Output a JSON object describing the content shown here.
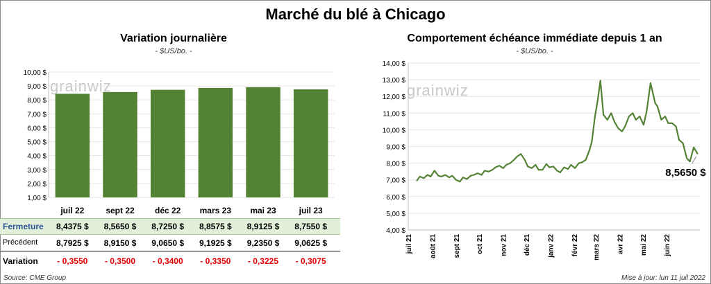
{
  "title": "Marché du blé à Chicago",
  "left_chart": {
    "title": "Variation  journalière",
    "unit": "- $US/bo. -",
    "watermark": "grainwiz"
  },
  "right_chart": {
    "title": "Comportement  échéance immédiate depuis 1 an",
    "unit": "- $US/bo. -",
    "watermark": "grainwiz",
    "last_label": "8,5650 $"
  },
  "table": {
    "row_labels": {
      "close": "Fermeture",
      "previous": "Précédent",
      "variation": "Variation"
    },
    "columns": [
      "juil 22",
      "sept 22",
      "déc 22",
      "mars 23",
      "mai 23",
      "juil 23"
    ],
    "close": [
      "8,4375  $",
      "8,5650  $",
      "8,7250  $",
      "8,8575  $",
      "8,9125  $",
      "8,7550  $"
    ],
    "previous": [
      "8,7925  $",
      "8,9150  $",
      "9,0650  $",
      "9,1925  $",
      "9,2350  $",
      "9,0625  $"
    ],
    "variation": [
      "- 0,3550",
      "- 0,3500",
      "- 0,3400",
      "- 0,3350",
      "- 0,3225",
      "- 0,3075"
    ]
  },
  "footer": {
    "source": "Source: CME Group",
    "updated": "Mise à jour: lun 11 juil 2022"
  },
  "chart_data": [
    {
      "type": "bar",
      "title": "Variation  journalière",
      "ylabel": "- $US/bo. -",
      "categories": [
        "juil 22",
        "sept 22",
        "déc 22",
        "mars 23",
        "mai 23",
        "juil 23"
      ],
      "values": [
        8.4375,
        8.565,
        8.725,
        8.8575,
        8.9125,
        8.755
      ],
      "ylim": [
        1,
        10
      ],
      "yticks": [
        "1,00 $",
        "2,00 $",
        "3,00 $",
        "4,00 $",
        "5,00 $",
        "6,00 $",
        "7,00 $",
        "8,00 $",
        "9,00 $",
        "10,00 $"
      ],
      "color": "#548235"
    },
    {
      "type": "line",
      "title": "Comportement  échéance immédiate depuis 1 an",
      "ylabel": "- $US/bo. -",
      "ylim": [
        4,
        14
      ],
      "yticks": [
        "4,00 $",
        "5,00 $",
        "6,00 $",
        "7,00 $",
        "8,00 $",
        "9,00 $",
        "10,00 $",
        "11,00 $",
        "12,00 $",
        "13,00 $",
        "14,00 $"
      ],
      "xticks": [
        "juil 21",
        "août 21",
        "sept 21",
        "oct 21",
        "nov 21",
        "déc 21",
        "janv 22",
        "févr 22",
        "mars 22",
        "avr 22",
        "mai 22",
        "juin 22"
      ],
      "color": "#548235",
      "x": [
        "2021-07-12",
        "2021-07-16",
        "2021-07-21",
        "2021-07-26",
        "2021-07-30",
        "2021-08-04",
        "2021-08-09",
        "2021-08-13",
        "2021-08-18",
        "2021-08-23",
        "2021-08-27",
        "2021-09-01",
        "2021-09-06",
        "2021-09-10",
        "2021-09-15",
        "2021-09-20",
        "2021-09-24",
        "2021-09-29",
        "2021-10-04",
        "2021-10-08",
        "2021-10-13",
        "2021-10-18",
        "2021-10-22",
        "2021-10-27",
        "2021-11-01",
        "2021-11-05",
        "2021-11-10",
        "2021-11-15",
        "2021-11-19",
        "2021-11-24",
        "2021-11-29",
        "2021-12-03",
        "2021-12-08",
        "2021-12-13",
        "2021-12-17",
        "2021-12-22",
        "2021-12-27",
        "2021-12-31",
        "2022-01-05",
        "2022-01-10",
        "2022-01-14",
        "2022-01-19",
        "2022-01-24",
        "2022-01-28",
        "2022-02-02",
        "2022-02-07",
        "2022-02-11",
        "2022-02-16",
        "2022-02-21",
        "2022-02-24",
        "2022-02-28",
        "2022-03-03",
        "2022-03-07",
        "2022-03-11",
        "2022-03-16",
        "2022-03-21",
        "2022-03-25",
        "2022-03-30",
        "2022-04-04",
        "2022-04-08",
        "2022-04-13",
        "2022-04-18",
        "2022-04-22",
        "2022-04-27",
        "2022-05-02",
        "2022-05-06",
        "2022-05-11",
        "2022-05-17",
        "2022-05-20",
        "2022-05-25",
        "2022-05-30",
        "2022-06-03",
        "2022-06-08",
        "2022-06-13",
        "2022-06-17",
        "2022-06-22",
        "2022-06-27",
        "2022-07-01",
        "2022-07-06",
        "2022-07-11"
      ],
      "y": [
        6.95,
        7.2,
        7.1,
        7.3,
        7.2,
        7.55,
        7.25,
        7.2,
        7.3,
        7.15,
        7.25,
        7.0,
        6.9,
        7.15,
        7.05,
        7.25,
        7.3,
        7.4,
        7.3,
        7.55,
        7.5,
        7.6,
        7.75,
        7.85,
        7.7,
        7.9,
        8.0,
        8.2,
        8.4,
        8.55,
        8.2,
        7.8,
        7.7,
        7.9,
        7.6,
        7.6,
        7.95,
        7.75,
        7.8,
        7.55,
        7.45,
        7.75,
        7.65,
        7.9,
        7.7,
        8.0,
        8.05,
        8.2,
        8.8,
        9.3,
        10.8,
        11.6,
        12.95,
        10.9,
        10.6,
        11.0,
        10.5,
        10.1,
        9.9,
        10.2,
        10.8,
        11.0,
        10.6,
        10.8,
        10.3,
        11.1,
        12.8,
        11.6,
        11.4,
        10.6,
        10.8,
        10.4,
        10.4,
        10.2,
        9.4,
        9.2,
        8.3,
        8.1,
        8.95,
        8.565
      ]
    }
  ]
}
